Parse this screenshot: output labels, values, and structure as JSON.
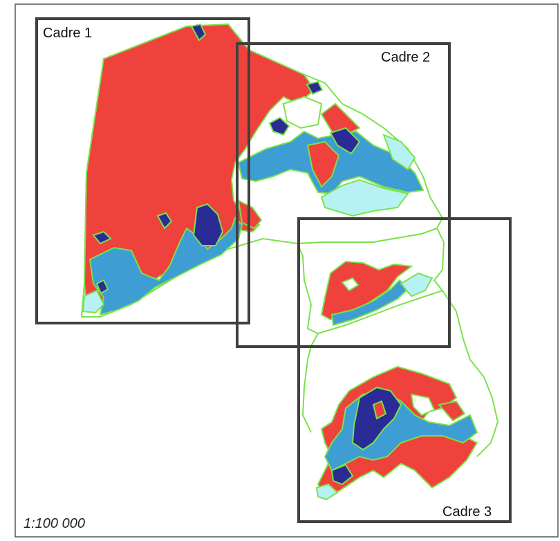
{
  "map": {
    "frames": [
      {
        "label": "Cadre 1"
      },
      {
        "label": "Cadre 2"
      },
      {
        "label": "Cadre 3"
      }
    ],
    "scale": "1:100 000"
  },
  "colors": {
    "red_zone": "#f0423c",
    "mid_blue_zone": "#3e9dd3",
    "dark_blue_zone": "#2b2b96",
    "light_cyan_zone": "#b6f2f4",
    "outline_green": "#7be24a",
    "frame_gray": "#404040",
    "background": "#ffffff"
  }
}
